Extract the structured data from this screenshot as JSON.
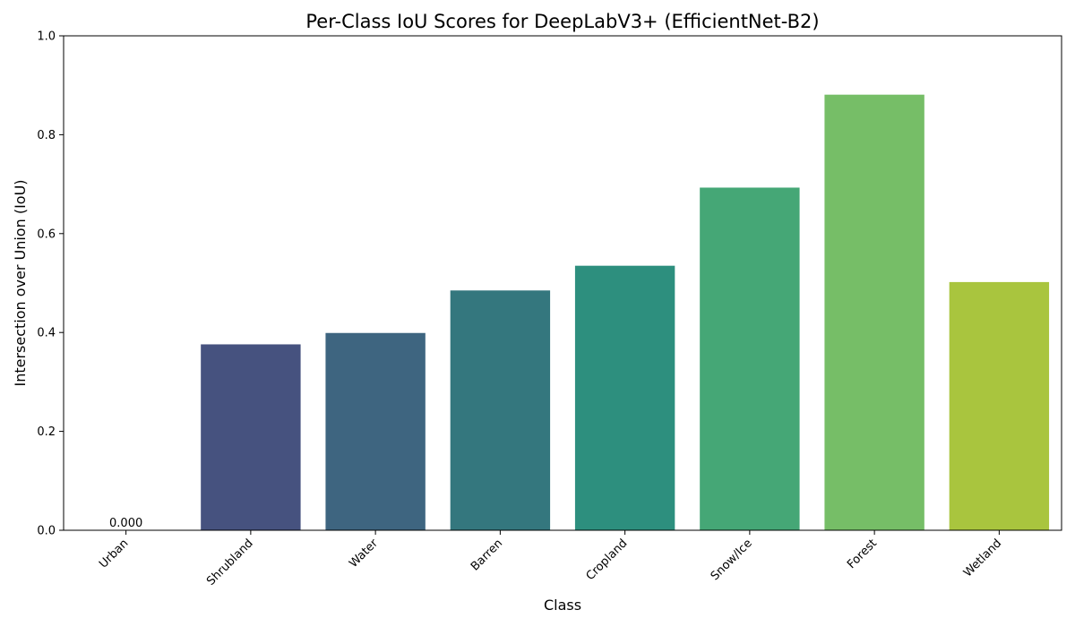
{
  "chart_data": {
    "type": "bar",
    "title": "Per-Class IoU Scores for DeepLabV3+ (EfficientNet-B2)",
    "xlabel": "Class",
    "ylabel": "Intersection over Union (IoU)",
    "categories": [
      "Urban",
      "Shrubland",
      "Water",
      "Barren",
      "Cropland",
      "Snow/Ice",
      "Forest",
      "Wetland"
    ],
    "values": [
      0.0,
      0.376,
      0.399,
      0.485,
      0.535,
      0.693,
      0.881,
      0.502
    ],
    "colors": [
      "#482878",
      "#46527f",
      "#3e6580",
      "#34777e",
      "#2d8f7e",
      "#45a776",
      "#76be67",
      "#a9c53e"
    ],
    "data_labels": [
      "0.000",
      "",
      "",
      "",
      "",
      "",
      "",
      ""
    ],
    "ylim": [
      0,
      1.0
    ],
    "yticks": [
      "0.0",
      "0.2",
      "0.4",
      "0.6",
      "0.8",
      "1.0"
    ],
    "grid": false,
    "legend": "none"
  }
}
